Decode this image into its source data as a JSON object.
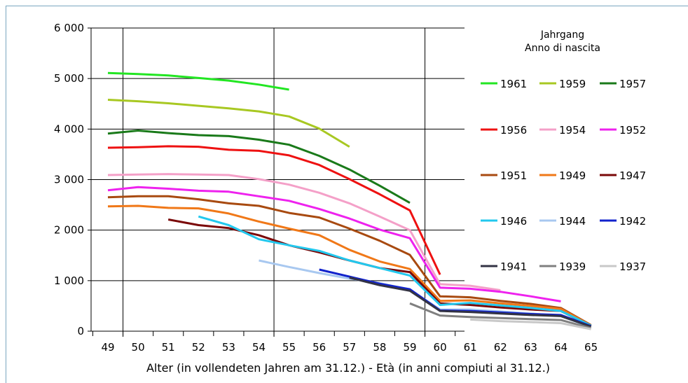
{
  "chart_data": {
    "type": "line",
    "title": "",
    "xlabel": "Alter (in vollendeten Jahren am 31.12.) - Età (in anni compiuti al 31.12.)",
    "ylabel": "",
    "x": [
      49,
      50,
      51,
      52,
      53,
      54,
      55,
      56,
      57,
      58,
      59,
      60,
      61,
      62,
      63,
      64,
      65
    ],
    "x_tick_labels": [
      "49",
      "50",
      "51",
      "52",
      "53",
      "54",
      "55",
      "56",
      "57",
      "58",
      "59",
      "60",
      "61",
      "62",
      "63",
      "64",
      "65"
    ],
    "y_tick_labels": [
      "0",
      "1 000",
      "2 000",
      "3 000",
      "4 000",
      "5 000",
      "6 000"
    ],
    "ylim": [
      0,
      6000
    ],
    "grid": "horizontal lines at every 1 000, vertical lines at 49.5, 54.5, 59.5",
    "legend_title": [
      "Jahrgang",
      "Anno di nascita"
    ],
    "legend_position": "right",
    "series": [
      {
        "name": "1961",
        "color": "#22e622",
        "points": [
          [
            49,
            5110
          ],
          [
            50,
            5090
          ],
          [
            51,
            5060
          ],
          [
            52,
            5010
          ],
          [
            53,
            4960
          ],
          [
            54,
            4880
          ],
          [
            55,
            4780
          ]
        ]
      },
      {
        "name": "1959",
        "color": "#a8c822",
        "points": [
          [
            49,
            4580
          ],
          [
            50,
            4550
          ],
          [
            51,
            4510
          ],
          [
            52,
            4460
          ],
          [
            53,
            4410
          ],
          [
            54,
            4350
          ],
          [
            55,
            4250
          ],
          [
            56,
            4010
          ],
          [
            57,
            3650
          ]
        ]
      },
      {
        "name": "1957",
        "color": "#1a7a1a",
        "points": [
          [
            49,
            3910
          ],
          [
            50,
            3970
          ],
          [
            51,
            3920
          ],
          [
            52,
            3880
          ],
          [
            53,
            3860
          ],
          [
            54,
            3790
          ],
          [
            55,
            3690
          ],
          [
            56,
            3470
          ],
          [
            57,
            3200
          ],
          [
            58,
            2880
          ],
          [
            59,
            2540
          ]
        ]
      },
      {
        "name": "1956",
        "color": "#ee1111",
        "points": [
          [
            49,
            3630
          ],
          [
            50,
            3640
          ],
          [
            51,
            3660
          ],
          [
            52,
            3650
          ],
          [
            53,
            3590
          ],
          [
            54,
            3570
          ],
          [
            55,
            3480
          ],
          [
            56,
            3290
          ],
          [
            57,
            3010
          ],
          [
            58,
            2710
          ],
          [
            59,
            2390
          ],
          [
            60,
            1120
          ]
        ]
      },
      {
        "name": "1954",
        "color": "#f4a0c8",
        "points": [
          [
            49,
            3090
          ],
          [
            50,
            3100
          ],
          [
            51,
            3110
          ],
          [
            52,
            3100
          ],
          [
            53,
            3090
          ],
          [
            54,
            3010
          ],
          [
            55,
            2900
          ],
          [
            56,
            2740
          ],
          [
            57,
            2530
          ],
          [
            58,
            2270
          ],
          [
            59,
            2000
          ],
          [
            60,
            930
          ],
          [
            61,
            900
          ],
          [
            62,
            810
          ]
        ]
      },
      {
        "name": "1952",
        "color": "#ee22ee",
        "points": [
          [
            49,
            2790
          ],
          [
            50,
            2850
          ],
          [
            51,
            2820
          ],
          [
            52,
            2780
          ],
          [
            53,
            2760
          ],
          [
            54,
            2670
          ],
          [
            55,
            2580
          ],
          [
            56,
            2420
          ],
          [
            57,
            2230
          ],
          [
            58,
            2010
          ],
          [
            59,
            1840
          ],
          [
            60,
            860
          ],
          [
            61,
            840
          ],
          [
            62,
            780
          ],
          [
            63,
            690
          ],
          [
            64,
            590
          ]
        ]
      },
      {
        "name": "1951",
        "color": "#a84a10",
        "points": [
          [
            49,
            2650
          ],
          [
            50,
            2670
          ],
          [
            51,
            2670
          ],
          [
            52,
            2610
          ],
          [
            53,
            2530
          ],
          [
            54,
            2480
          ],
          [
            55,
            2340
          ],
          [
            56,
            2250
          ],
          [
            57,
            2030
          ],
          [
            58,
            1790
          ],
          [
            59,
            1510
          ],
          [
            60,
            690
          ],
          [
            61,
            670
          ],
          [
            62,
            600
          ],
          [
            63,
            540
          ],
          [
            64,
            460
          ],
          [
            65,
            120
          ]
        ]
      },
      {
        "name": "1949",
        "color": "#f07818",
        "points": [
          [
            49,
            2470
          ],
          [
            50,
            2480
          ],
          [
            51,
            2440
          ],
          [
            52,
            2430
          ],
          [
            53,
            2330
          ],
          [
            54,
            2170
          ],
          [
            55,
            2030
          ],
          [
            56,
            1900
          ],
          [
            57,
            1610
          ],
          [
            58,
            1380
          ],
          [
            59,
            1230
          ],
          [
            60,
            600
          ],
          [
            61,
            610
          ],
          [
            62,
            550
          ],
          [
            63,
            500
          ],
          [
            64,
            440
          ],
          [
            65,
            110
          ]
        ]
      },
      {
        "name": "1947",
        "color": "#7a0808",
        "points": [
          [
            51,
            2210
          ],
          [
            52,
            2100
          ],
          [
            53,
            2040
          ],
          [
            54,
            1900
          ],
          [
            55,
            1700
          ],
          [
            56,
            1560
          ],
          [
            57,
            1400
          ],
          [
            58,
            1250
          ],
          [
            59,
            1170
          ],
          [
            60,
            550
          ],
          [
            61,
            520
          ],
          [
            62,
            470
          ],
          [
            63,
            430
          ],
          [
            64,
            400
          ],
          [
            65,
            100
          ]
        ]
      },
      {
        "name": "1946",
        "color": "#22c8ee",
        "points": [
          [
            52,
            2270
          ],
          [
            53,
            2100
          ],
          [
            54,
            1820
          ],
          [
            55,
            1700
          ],
          [
            56,
            1590
          ],
          [
            57,
            1400
          ],
          [
            58,
            1250
          ],
          [
            59,
            1100
          ],
          [
            60,
            520
          ],
          [
            61,
            560
          ],
          [
            62,
            510
          ],
          [
            63,
            460
          ],
          [
            64,
            400
          ],
          [
            65,
            110
          ]
        ]
      },
      {
        "name": "1944",
        "color": "#a8c8f0",
        "points": [
          [
            54,
            1400
          ],
          [
            55,
            1270
          ],
          [
            56,
            1150
          ],
          [
            57,
            1040
          ],
          [
            58,
            950
          ],
          [
            59,
            820
          ],
          [
            60,
            430
          ],
          [
            61,
            430
          ],
          [
            62,
            390
          ],
          [
            63,
            350
          ],
          [
            64,
            300
          ],
          [
            65,
            80
          ]
        ]
      },
      {
        "name": "1942",
        "color": "#1122cc",
        "points": [
          [
            56,
            1220
          ],
          [
            57,
            1080
          ],
          [
            58,
            940
          ],
          [
            59,
            830
          ],
          [
            60,
            410
          ],
          [
            61,
            400
          ],
          [
            62,
            370
          ],
          [
            63,
            340
          ],
          [
            64,
            320
          ],
          [
            65,
            100
          ]
        ]
      },
      {
        "name": "1941",
        "color": "#333344",
        "points": [
          [
            57,
            1060
          ],
          [
            58,
            910
          ],
          [
            59,
            800
          ],
          [
            60,
            400
          ],
          [
            61,
            380
          ],
          [
            62,
            350
          ],
          [
            63,
            320
          ],
          [
            64,
            300
          ],
          [
            65,
            90
          ]
        ]
      },
      {
        "name": "1939",
        "color": "#808080",
        "points": [
          [
            59,
            550
          ],
          [
            60,
            310
          ],
          [
            61,
            280
          ],
          [
            62,
            260
          ],
          [
            63,
            240
          ],
          [
            64,
            220
          ],
          [
            65,
            60
          ]
        ]
      },
      {
        "name": "1937",
        "color": "#c8c8c8",
        "points": [
          [
            61,
            230
          ],
          [
            62,
            200
          ],
          [
            63,
            180
          ],
          [
            64,
            160
          ],
          [
            65,
            40
          ]
        ]
      }
    ]
  }
}
